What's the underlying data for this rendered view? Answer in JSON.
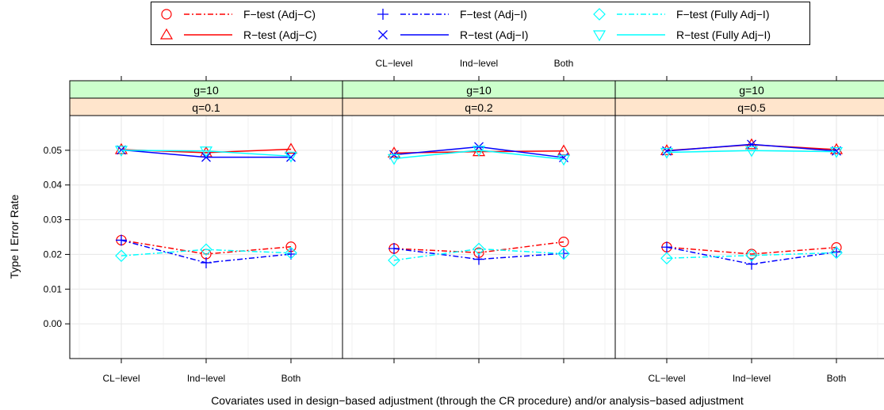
{
  "chart_data": {
    "type": "line",
    "ylabel": "Type I Error Rate",
    "xlabel": "Covariates used in design−based adjustment (through the CR procedure) and/or analysis−based adjustment",
    "categories": [
      "CL−level",
      "Ind−level",
      "Both"
    ],
    "ylim": [
      -0.01,
      0.06
    ],
    "yticks": [
      "0.00",
      "0.01",
      "0.02",
      "0.03",
      "0.04",
      "0.05"
    ],
    "grid": true,
    "legend": {
      "placement": "top",
      "items": [
        {
          "label": "F−test (Adj−C)",
          "color": "#ff0000",
          "marker": "circle",
          "line": "dashdot"
        },
        {
          "label": "R−test (Adj−C)",
          "color": "#ff0000",
          "marker": "triangle-up",
          "line": "solid"
        },
        {
          "label": "F−test (Adj−I)",
          "color": "#0000ff",
          "marker": "plus",
          "line": "dashdot"
        },
        {
          "label": "R−test (Adj−I)",
          "color": "#0000ff",
          "marker": "cross",
          "line": "solid"
        },
        {
          "label": "F−test (Fully Adj−I)",
          "color": "#00ffff",
          "marker": "diamond",
          "line": "dashdot"
        },
        {
          "label": "R−test (Fully Adj−I)",
          "color": "#00ffff",
          "marker": "triangle-down",
          "line": "solid"
        }
      ]
    },
    "panels": [
      {
        "strip_g": "g=10",
        "strip_q": "q=0.1",
        "series": [
          {
            "name": "F−test (Adj−C)",
            "values": [
              0.0241,
              0.0201,
              0.0222
            ]
          },
          {
            "name": "R−test (Adj−C)",
            "values": [
              0.0502,
              0.0493,
              0.0503
            ]
          },
          {
            "name": "F−test (Adj−I)",
            "values": [
              0.0241,
              0.0176,
              0.0201
            ]
          },
          {
            "name": "R−test (Adj−I)",
            "values": [
              0.0501,
              0.048,
              0.048
            ]
          },
          {
            "name": "F−test (Fully Adj−I)",
            "values": [
              0.0196,
              0.0214,
              0.0204
            ]
          },
          {
            "name": "R−test (Fully Adj−I)",
            "values": [
              0.05,
              0.0498,
              0.0483
            ]
          }
        ]
      },
      {
        "strip_g": "g=10",
        "strip_q": "q=0.2",
        "series": [
          {
            "name": "F−test (Adj−C)",
            "values": [
              0.0217,
              0.0205,
              0.0236
            ]
          },
          {
            "name": "R−test (Adj−C)",
            "values": [
              0.0492,
              0.0496,
              0.0498
            ]
          },
          {
            "name": "F−test (Adj−I)",
            "values": [
              0.0217,
              0.0186,
              0.0203
            ]
          },
          {
            "name": "R−test (Adj−I)",
            "values": [
              0.0487,
              0.051,
              0.0479
            ]
          },
          {
            "name": "F−test (Fully Adj−I)",
            "values": [
              0.0183,
              0.0216,
              0.0202
            ]
          },
          {
            "name": "R−test (Fully Adj−I)",
            "values": [
              0.0476,
              0.05,
              0.0474
            ]
          }
        ]
      },
      {
        "strip_g": "g=10",
        "strip_q": "q=0.5",
        "series": [
          {
            "name": "F−test (Adj−C)",
            "values": [
              0.0221,
              0.0201,
              0.022
            ]
          },
          {
            "name": "R−test (Adj−C)",
            "values": [
              0.0499,
              0.0516,
              0.0502
            ]
          },
          {
            "name": "F−test (Adj−I)",
            "values": [
              0.0221,
              0.0172,
              0.0207
            ]
          },
          {
            "name": "R−test (Adj−I)",
            "values": [
              0.0498,
              0.0517,
              0.0498
            ]
          },
          {
            "name": "F−test (Fully Adj−I)",
            "values": [
              0.0189,
              0.0197,
              0.0205
            ]
          },
          {
            "name": "R−test (Fully Adj−I)",
            "values": [
              0.0494,
              0.0499,
              0.0496
            ]
          }
        ]
      }
    ],
    "x_tick_labels_top_panels": [
      1
    ],
    "x_tick_labels_bottom_panels": [
      0,
      2
    ]
  }
}
